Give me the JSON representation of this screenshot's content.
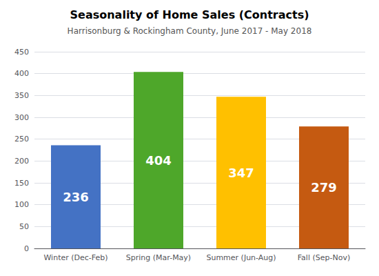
{
  "chart_data": {
    "type": "bar",
    "title": "Seasonality of Home Sales (Contracts)",
    "subtitle": "Harrisonburg & Rockingham County, June 2017 - May 2018",
    "categories": [
      "Winter (Dec-Feb)",
      "Spring (Mar-May)",
      "Summer (Jun-Aug)",
      "Fall (Sep-Nov)"
    ],
    "values": [
      236,
      404,
      347,
      279
    ],
    "colors": [
      "#4472C4",
      "#4EA72A",
      "#FFC000",
      "#C55A11"
    ],
    "ylim": [
      0,
      450
    ],
    "yticks": [
      0,
      50,
      100,
      150,
      200,
      250,
      300,
      350,
      400,
      450
    ],
    "grid": true,
    "data_labels": true
  }
}
